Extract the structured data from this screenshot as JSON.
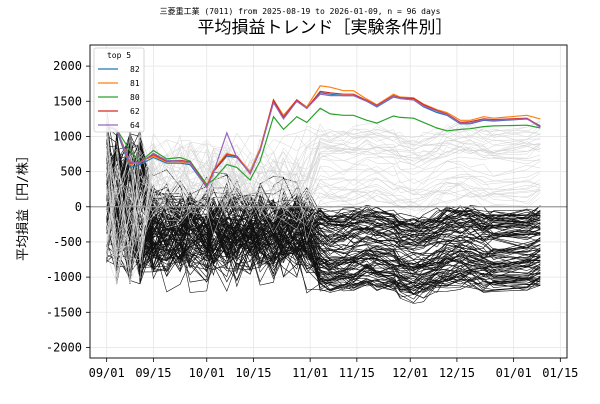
{
  "chart_data": {
    "type": "line",
    "supertitle": "三菱重工業 (7011) from 2025-08-19 to 2026-01-09, n = 96 days",
    "title": "平均損益トレンド［実験条件別］",
    "xlabel": "",
    "ylabel": "平均損益［円/株］",
    "ylim": [
      -2150,
      2300
    ],
    "xlim": [
      "2025-08-27",
      "2026-01-17"
    ],
    "y_ticks": [
      -2000,
      -1500,
      -1000,
      -500,
      0,
      500,
      1000,
      1500,
      2000
    ],
    "x_ticks": [
      {
        "date": "2025-09-01",
        "label": "09/01"
      },
      {
        "date": "2025-09-15",
        "label": "09/15"
      },
      {
        "date": "2025-10-01",
        "label": "10/01"
      },
      {
        "date": "2025-10-15",
        "label": "10/15"
      },
      {
        "date": "2025-11-01",
        "label": "11/01"
      },
      {
        "date": "2025-11-15",
        "label": "11/15"
      },
      {
        "date": "2025-12-01",
        "label": "12/01"
      },
      {
        "date": "2025-12-15",
        "label": "12/15"
      },
      {
        "date": "2026-01-01",
        "label": "01/01"
      },
      {
        "date": "2026-01-15",
        "label": "01/15"
      }
    ],
    "grid": true,
    "zero_line": true,
    "legend": {
      "title": "top 5",
      "position": "top-left"
    },
    "x_dates": [
      "2025-09-01",
      "2025-09-04",
      "2025-09-08",
      "2025-09-11",
      "2025-09-15",
      "2025-09-19",
      "2025-09-23",
      "2025-09-26",
      "2025-10-01",
      "2025-10-03",
      "2025-10-07",
      "2025-10-10",
      "2025-10-14",
      "2025-10-17",
      "2025-10-21",
      "2025-10-24",
      "2025-10-28",
      "2025-10-31",
      "2025-11-04",
      "2025-11-07",
      "2025-11-11",
      "2025-11-14",
      "2025-11-18",
      "2025-11-21",
      "2025-11-26",
      "2025-11-28",
      "2025-12-02",
      "2025-12-05",
      "2025-12-09",
      "2025-12-12",
      "2025-12-16",
      "2025-12-19",
      "2025-12-23",
      "2025-12-26",
      "2026-01-05",
      "2026-01-09"
    ],
    "series": [
      {
        "name": "82",
        "color": "#1f77b4",
        "values": [
          1150,
          1080,
          560,
          600,
          700,
          620,
          620,
          600,
          280,
          500,
          720,
          700,
          480,
          800,
          1500,
          1280,
          1500,
          1400,
          1620,
          1600,
          1580,
          1580,
          1500,
          1420,
          1560,
          1540,
          1520,
          1420,
          1340,
          1300,
          1180,
          1180,
          1230,
          1220,
          1250,
          1150
        ]
      },
      {
        "name": "81",
        "color": "#ff7f0e",
        "values": [
          1150,
          1100,
          600,
          640,
          720,
          640,
          640,
          620,
          300,
          520,
          760,
          720,
          500,
          830,
          1520,
          1300,
          1520,
          1420,
          1720,
          1700,
          1650,
          1650,
          1530,
          1450,
          1600,
          1560,
          1550,
          1460,
          1380,
          1340,
          1230,
          1230,
          1280,
          1260,
          1300,
          1250
        ]
      },
      {
        "name": "80",
        "color": "#2ca02c",
        "values": [
          1150,
          1100,
          800,
          640,
          800,
          680,
          700,
          650,
          320,
          380,
          600,
          560,
          380,
          650,
          1280,
          1100,
          1280,
          1200,
          1400,
          1320,
          1300,
          1300,
          1230,
          1190,
          1290,
          1270,
          1260,
          1200,
          1120,
          1080,
          1100,
          1110,
          1140,
          1150,
          1160,
          1120
        ]
      },
      {
        "name": "62",
        "color": "#d62728",
        "values": [
          1150,
          1100,
          620,
          640,
          740,
          650,
          660,
          640,
          280,
          500,
          740,
          720,
          470,
          800,
          1520,
          1270,
          1520,
          1400,
          1640,
          1620,
          1600,
          1600,
          1510,
          1440,
          1580,
          1550,
          1540,
          1450,
          1370,
          1320,
          1200,
          1210,
          1250,
          1240,
          1260,
          1140
        ]
      },
      {
        "name": "64",
        "color": "#9467bd",
        "values": [
          1150,
          1100,
          640,
          620,
          760,
          660,
          650,
          630,
          270,
          480,
          1050,
          700,
          480,
          800,
          1480,
          1250,
          1500,
          1400,
          1600,
          1580,
          1580,
          1580,
          1500,
          1430,
          1570,
          1540,
          1520,
          1430,
          1360,
          1310,
          1190,
          1190,
          1240,
          1230,
          1250,
          1130
        ]
      }
    ]
  }
}
